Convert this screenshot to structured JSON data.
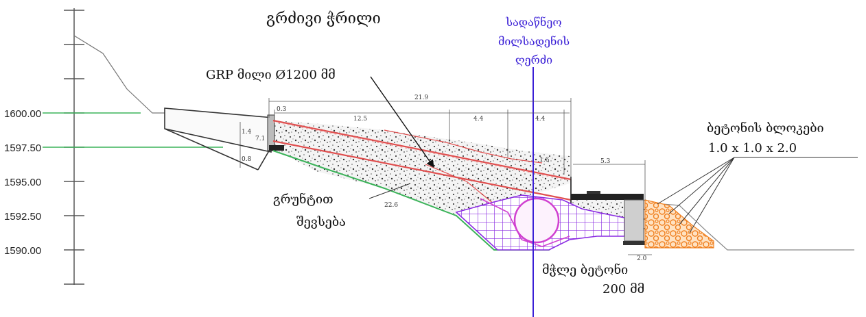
{
  "title": "გრძივი ჭრილი",
  "elevations": [
    "1600.00",
    "1597.50",
    "1595.00",
    "1592.50",
    "1590.00"
  ],
  "axis_label": [
    "სადაწნეო",
    "მილსადენის",
    "ღერძი"
  ],
  "pipe_label": "GRP მილი Ø1200 მმ",
  "backfill_label": [
    "გრუნტით",
    "შევსება"
  ],
  "blocks_label": [
    "ბეტონის ბლოკები",
    "1.0 x 1.0 x 2.0"
  ],
  "lean_concrete_label": [
    "მჭლე ბეტონი",
    "200 მმ"
  ],
  "dimensions": {
    "d_21_9": "21.9",
    "d_0_3": "0.3",
    "d_12_5": "12.5",
    "d_4_4a": "4.4",
    "d_4_4b": "4.4",
    "d_5_3": "5.3",
    "d_2_0": "2.0",
    "d_22_6": "22.6",
    "d_1_4": "1.4",
    "d_0_8": "0.8",
    "d_7_1": "7.1",
    "d_1_6": "1.6"
  },
  "colors": {
    "axis": "#3a1fd6",
    "pipe": "#e05050",
    "grade_line": "#3cb35a",
    "concrete_fill": "#8a2be2",
    "circle_fill": "#d040d0",
    "blocks_fill": "#f08020"
  }
}
